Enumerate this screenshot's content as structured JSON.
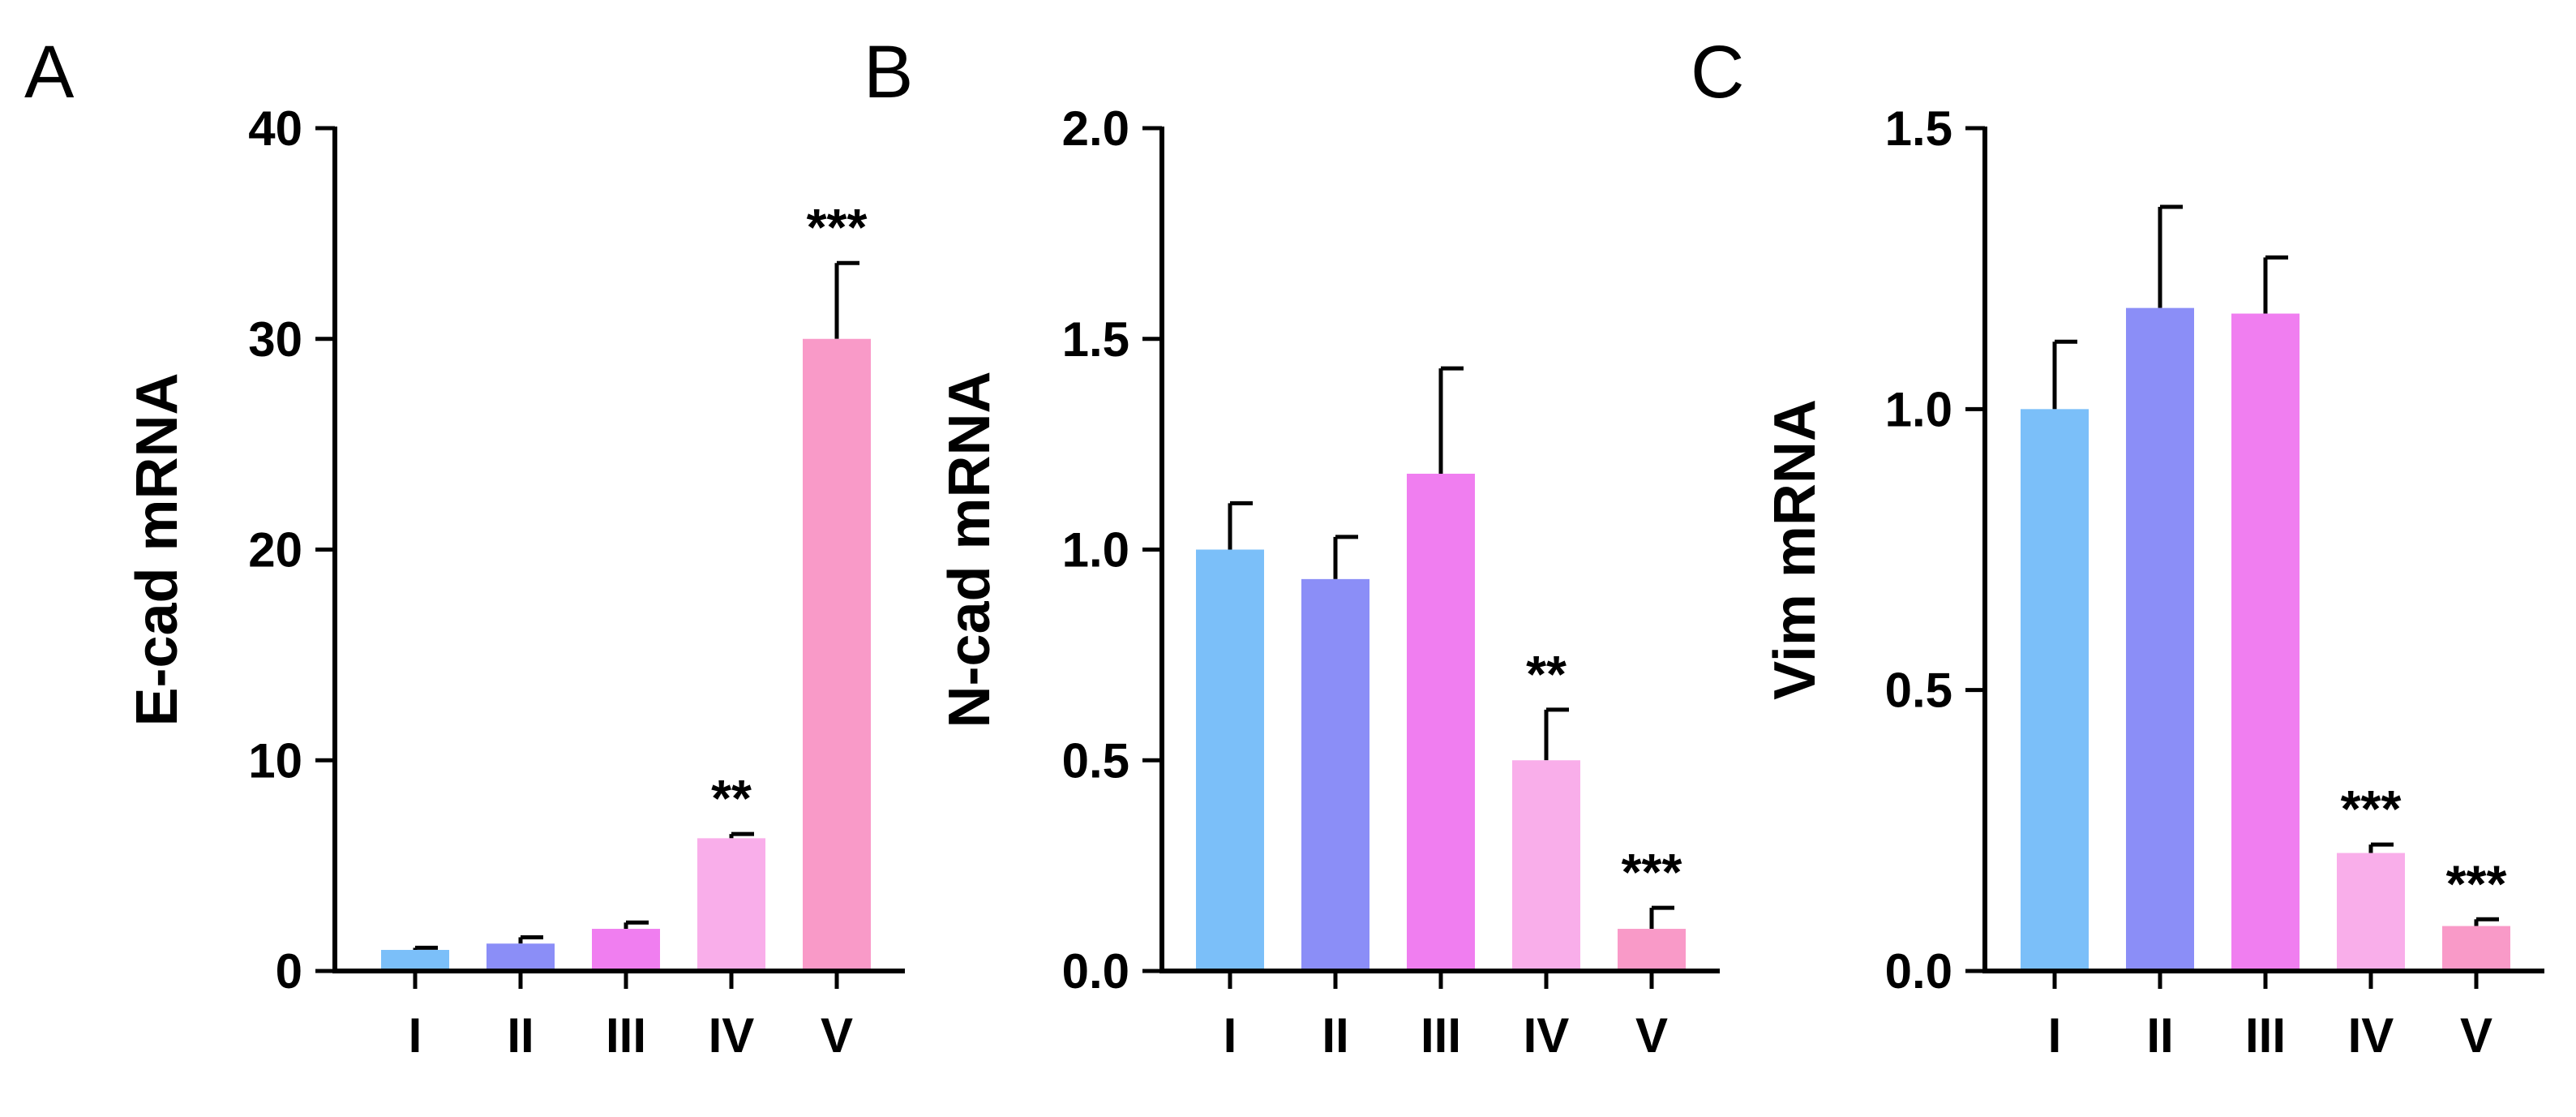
{
  "chart_data": [
    {
      "type": "bar",
      "panel": "A",
      "ylabel": "E-cad mRNA",
      "ylim": [
        0,
        40
      ],
      "yticks": [
        0,
        10,
        20,
        30,
        40
      ],
      "categories": [
        "I",
        "II",
        "III",
        "IV",
        "V"
      ],
      "values": [
        1.0,
        1.3,
        2.0,
        6.3,
        30.0
      ],
      "errors": [
        0.1,
        0.3,
        0.3,
        0.2,
        3.6
      ],
      "significance": [
        "",
        "",
        "",
        "**",
        "***"
      ],
      "colors": [
        "#7bbff9",
        "#8b8ef7",
        "#f07ef0",
        "#f9aeea",
        "#f99ac8"
      ]
    },
    {
      "type": "bar",
      "panel": "B",
      "ylabel": "N-cad mRNA",
      "ylim": [
        0,
        2.0
      ],
      "yticks": [
        0.0,
        0.5,
        1.0,
        1.5,
        2.0
      ],
      "categories": [
        "I",
        "II",
        "III",
        "IV",
        "V"
      ],
      "values": [
        1.0,
        0.93,
        1.18,
        0.5,
        0.1
      ],
      "errors": [
        0.11,
        0.1,
        0.25,
        0.12,
        0.05
      ],
      "significance": [
        "",
        "",
        "",
        "**",
        "***"
      ],
      "colors": [
        "#7bbff9",
        "#8b8ef7",
        "#f07ef0",
        "#f9aeea",
        "#f99ac8"
      ]
    },
    {
      "type": "bar",
      "panel": "C",
      "ylabel": "Vim mRNA",
      "ylim": [
        0,
        1.5
      ],
      "yticks": [
        0.0,
        0.5,
        1.0,
        1.5
      ],
      "categories": [
        "I",
        "II",
        "III",
        "IV",
        "V"
      ],
      "values": [
        1.0,
        1.18,
        1.17,
        0.21,
        0.08
      ],
      "errors": [
        0.12,
        0.18,
        0.1,
        0.015,
        0.012
      ],
      "significance": [
        "",
        "",
        "",
        "***",
        "***"
      ],
      "colors": [
        "#7bbff9",
        "#8b8ef7",
        "#f07ef0",
        "#f9aeea",
        "#f99ac8"
      ]
    }
  ]
}
